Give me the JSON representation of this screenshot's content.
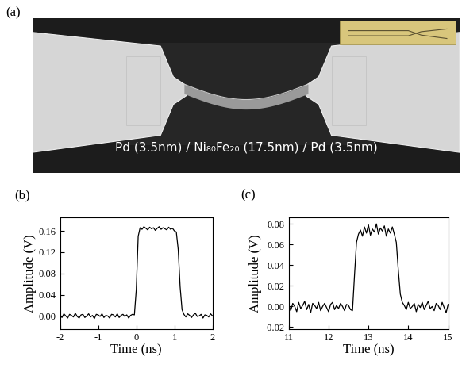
{
  "panel_a": {
    "label": "(a)",
    "caption": "Pd (3.5nm) / Ni₈₀Fe₂₀ (17.5nm) / Pd (3.5nm)"
  },
  "chart_data": [
    {
      "type": "line",
      "title": "(b)",
      "x_label": "Time (ns)",
      "y_label": "Amplitude (V)",
      "color": "#000000",
      "x": [
        -2.0,
        -1.95,
        -1.9,
        -1.85,
        -1.8,
        -1.75,
        -1.7,
        -1.65,
        -1.6,
        -1.55,
        -1.5,
        -1.45,
        -1.4,
        -1.35,
        -1.3,
        -1.25,
        -1.2,
        -1.15,
        -1.1,
        -1.05,
        -1.0,
        -0.95,
        -0.9,
        -0.85,
        -0.8,
        -0.75,
        -0.7,
        -0.65,
        -0.6,
        -0.55,
        -0.5,
        -0.45,
        -0.4,
        -0.35,
        -0.3,
        -0.25,
        -0.2,
        -0.15,
        -0.1,
        -0.05,
        0.0,
        0.05,
        0.1,
        0.15,
        0.2,
        0.25,
        0.3,
        0.35,
        0.4,
        0.45,
        0.5,
        0.55,
        0.6,
        0.65,
        0.7,
        0.75,
        0.8,
        0.85,
        0.9,
        0.95,
        1.0,
        1.05,
        1.1,
        1.15,
        1.2,
        1.25,
        1.3,
        1.35,
        1.4,
        1.45,
        1.5,
        1.55,
        1.6,
        1.65,
        1.7,
        1.75,
        1.8,
        1.85,
        1.9,
        1.95,
        2.0
      ],
      "values": [
        0.002,
        -0.003,
        0.004,
        0.0,
        -0.004,
        0.003,
        0.001,
        -0.002,
        0.005,
        -0.001,
        -0.004,
        0.002,
        0.003,
        -0.003,
        0.0,
        0.004,
        -0.002,
        0.001,
        -0.005,
        0.003,
        0.002,
        -0.001,
        0.004,
        -0.003,
        0.001,
        0.0,
        -0.004,
        0.003,
        0.002,
        -0.002,
        0.004,
        -0.003,
        0.001,
        0.003,
        -0.001,
        0.002,
        -0.004,
        0.001,
        0.003,
        0.002,
        0.05,
        0.15,
        0.166,
        0.163,
        0.168,
        0.165,
        0.162,
        0.167,
        0.164,
        0.166,
        0.161,
        0.165,
        0.168,
        0.163,
        0.166,
        0.164,
        0.162,
        0.167,
        0.163,
        0.165,
        0.16,
        0.158,
        0.125,
        0.055,
        0.012,
        0.003,
        -0.002,
        0.004,
        0.001,
        -0.003,
        0.002,
        0.005,
        -0.001,
        0.0,
        0.003,
        -0.004,
        0.002,
        0.001,
        -0.002,
        0.004,
        0.0
      ],
      "xlim": [
        -2,
        2
      ],
      "xticks": [
        -2,
        -1,
        0,
        1,
        2
      ],
      "ylim": [
        -0.025,
        0.185
      ],
      "yticks": [
        {
          "value": 0.0,
          "label": "0.00"
        },
        {
          "value": 0.04,
          "label": "0.04"
        },
        {
          "value": 0.08,
          "label": "0.08"
        },
        {
          "value": 0.12,
          "label": "0.12"
        },
        {
          "value": 0.16,
          "label": "0.16"
        }
      ]
    },
    {
      "type": "line",
      "title": "(c)",
      "x_label": "Time (ns)",
      "y_label": "Amplitude (V)",
      "color": "#000000",
      "x": [
        11.0,
        11.05,
        11.1,
        11.15,
        11.2,
        11.25,
        11.3,
        11.35,
        11.4,
        11.45,
        11.5,
        11.55,
        11.6,
        11.65,
        11.7,
        11.75,
        11.8,
        11.85,
        11.9,
        11.95,
        12.0,
        12.05,
        12.1,
        12.15,
        12.2,
        12.25,
        12.3,
        12.35,
        12.4,
        12.45,
        12.5,
        12.55,
        12.6,
        12.65,
        12.7,
        12.75,
        12.8,
        12.85,
        12.9,
        12.95,
        13.0,
        13.05,
        13.1,
        13.15,
        13.2,
        13.25,
        13.3,
        13.35,
        13.4,
        13.45,
        13.5,
        13.55,
        13.6,
        13.65,
        13.7,
        13.75,
        13.8,
        13.85,
        13.9,
        13.95,
        14.0,
        14.05,
        14.1,
        14.15,
        14.2,
        14.25,
        14.3,
        14.35,
        14.4,
        14.45,
        14.5,
        14.55,
        14.6,
        14.65,
        14.7,
        14.75,
        14.8,
        14.85,
        14.9,
        14.95,
        15.0
      ],
      "values": [
        0.002,
        -0.004,
        0.003,
        0.0,
        -0.005,
        0.004,
        -0.002,
        0.001,
        0.005,
        -0.003,
        0.002,
        -0.006,
        0.003,
        0.001,
        -0.002,
        0.004,
        -0.004,
        0.0,
        0.003,
        -0.001,
        -0.005,
        0.002,
        0.004,
        -0.003,
        0.001,
        -0.002,
        0.003,
        0.0,
        -0.004,
        0.002,
        0.001,
        -0.003,
        -0.004,
        0.03,
        0.062,
        0.07,
        0.074,
        0.068,
        0.077,
        0.071,
        0.079,
        0.069,
        0.075,
        0.072,
        0.08,
        0.07,
        0.076,
        0.073,
        0.078,
        0.068,
        0.075,
        0.071,
        0.077,
        0.07,
        0.062,
        0.035,
        0.012,
        0.004,
        0.001,
        -0.003,
        0.004,
        -0.002,
        0.0,
        0.003,
        -0.005,
        0.002,
        -0.001,
        0.004,
        -0.003,
        0.001,
        0.005,
        -0.002,
        0.0,
        -0.004,
        0.003,
        0.001,
        -0.003,
        0.004,
        -0.001,
        -0.006,
        0.002
      ],
      "xlim": [
        11,
        15
      ],
      "xticks": [
        11,
        12,
        13,
        14,
        15
      ],
      "ylim": [
        -0.022,
        0.086
      ],
      "yticks": [
        {
          "value": -0.02,
          "label": "-0.02"
        },
        {
          "value": 0.0,
          "label": "0.00"
        },
        {
          "value": 0.02,
          "label": "0.02"
        },
        {
          "value": 0.04,
          "label": "0.04"
        },
        {
          "value": 0.06,
          "label": "0.06"
        },
        {
          "value": 0.08,
          "label": "0.08"
        }
      ]
    }
  ]
}
